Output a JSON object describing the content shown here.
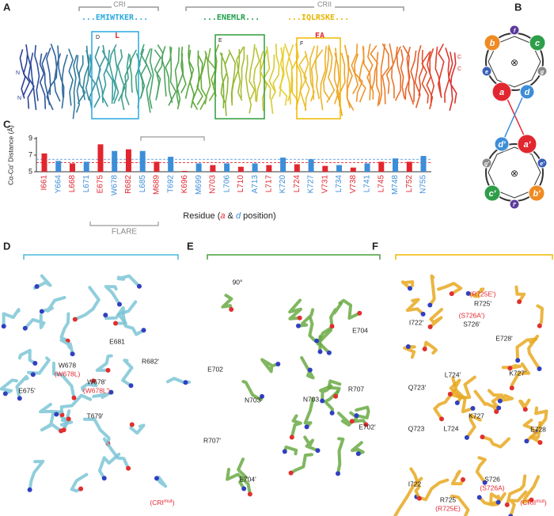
{
  "panel_labels": [
    "A",
    "B",
    "C",
    "D",
    "E",
    "F"
  ],
  "panel_a": {
    "regions": [
      "CRI",
      "CRII"
    ],
    "sequences": [
      "...EMIWTKER...",
      "...ENEMLR...",
      "...IQLRSKE..."
    ],
    "mutations": [
      "L",
      "EA"
    ],
    "boxes": [
      "D",
      "E",
      "F"
    ],
    "termini": [
      "N",
      "N",
      "C",
      "C"
    ]
  },
  "panel_b": {
    "core_symbol": "⊗",
    "top_wheel": [
      "a",
      "b",
      "c",
      "d",
      "e",
      "f",
      "g"
    ],
    "bottom_wheel": [
      "a'",
      "b'",
      "c'",
      "d'",
      "e'",
      "f'",
      "g'"
    ]
  },
  "chart_data": {
    "type": "bar",
    "ylabel": "Cα-Cα' Distance (Å)",
    "xlabel_parts": [
      "Residue (",
      "a",
      " & ",
      "d",
      " position)"
    ],
    "bracket_label": "FLARE",
    "categories": [
      "I661",
      "Y664",
      "L668",
      "L671",
      "E675",
      "W678",
      "R682",
      "L685",
      "M689",
      "T692",
      "K696",
      "M699",
      "N703",
      "L706",
      "L710",
      "A713",
      "L717",
      "K720",
      "L724",
      "K727",
      "V731",
      "L734",
      "V738",
      "L741",
      "L745",
      "M748",
      "L752",
      "N755"
    ],
    "values": [
      7.2,
      6.3,
      6.0,
      6.2,
      8.3,
      7.5,
      7.7,
      7.5,
      6.2,
      6.8,
      5.1,
      6.0,
      5.8,
      6.0,
      5.6,
      6.0,
      5.8,
      6.7,
      5.9,
      6.5,
      5.7,
      5.8,
      5.5,
      6.0,
      6.2,
      6.6,
      6.2,
      6.9
    ],
    "colors": [
      "#e2262f",
      "#3d8ed8",
      "#e2262f",
      "#3d8ed8",
      "#e2262f",
      "#3d8ed8",
      "#e2262f",
      "#3d8ed8",
      "#e2262f",
      "#3d8ed8",
      "#e2262f",
      "#3d8ed8",
      "#e2262f",
      "#3d8ed8",
      "#e2262f",
      "#3d8ed8",
      "#e2262f",
      "#3d8ed8",
      "#e2262f",
      "#3d8ed8",
      "#e2262f",
      "#3d8ed8",
      "#e2262f",
      "#3d8ed8",
      "#e2262f",
      "#3d8ed8",
      "#e2262f",
      "#3d8ed8"
    ],
    "reference_lines": [
      {
        "value": 6.1,
        "color": "#e2262f"
      },
      {
        "value": 6.5,
        "color": "#3d8ed8"
      }
    ],
    "ylim": [
      5,
      9
    ],
    "yticks": [
      5,
      7,
      9
    ]
  },
  "panel_d": {
    "labels": [
      "W678",
      "(W678L)",
      "E681",
      "R682'",
      "W678'",
      "(W678L')",
      "E675'",
      "T679'"
    ],
    "note": [
      "(CRI",
      "mut",
      ")"
    ]
  },
  "panel_e": {
    "view": "90°",
    "labels": [
      "E704",
      "R707",
      "E702",
      "N703",
      "N703'",
      "R707'",
      "E702'",
      "E704'"
    ]
  },
  "panel_f": {
    "labels": [
      "(R725E')",
      "R725'",
      "(S726A')",
      "S726'",
      "I722'",
      "E728'",
      "Q723'",
      "L724'",
      "K727'",
      "K727",
      "E728",
      "Q723",
      "L724",
      "S726",
      "(S726A)",
      "I722",
      "R725",
      "(R725E)"
    ],
    "note": [
      "(CRII",
      "mut",
      ")"
    ]
  }
}
